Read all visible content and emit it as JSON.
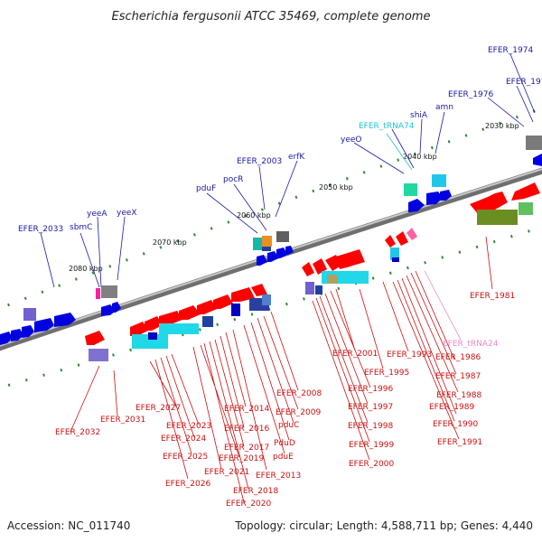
{
  "title": "Escherichia fergusonii ATCC 35469, complete genome",
  "footer": {
    "accession": "Accession: NC_011740",
    "summary": "Topology: circular; Length: 4,588,711 bp; Genes: 4,440"
  },
  "axis": {
    "ticks": [
      "2030 kbp",
      "2040 kbp",
      "2050 kbp",
      "2060 kbp",
      "2070 kbp",
      "2080 kbp"
    ]
  },
  "colors": {
    "plus_label": "#1a1aa6",
    "minus_label": "#cc1111",
    "trna_plus": "#22c4d6",
    "trna_minus": "#ee88c8",
    "backbone": "#8a8a8a",
    "tick": "#2f8a2f"
  },
  "labels_top": [
    "EFER_1974",
    "EFER_1975",
    "EFER_1976",
    "amn",
    "shiA",
    "EFER_tRNA74",
    "yeeO",
    "erfK",
    "EFER_2003",
    "pocR",
    "pduF",
    "yeeX",
    "yeeA",
    "sbmC",
    "EFER_2033"
  ],
  "labels_bottom": [
    "EFER_1981",
    "EFER_tRNA24",
    "EFER_1986",
    "EFER_1987",
    "EFER_1988",
    "EFER_1989",
    "EFER_1990",
    "EFER_1991",
    "EFER_1993",
    "EFER_1995",
    "EFER_2001",
    "EFER_1996",
    "EFER_1997",
    "EFER_1998",
    "EFER_1999",
    "EFER_2000",
    "EFER_2008",
    "EFER_2009",
    "pduC",
    "PduD",
    "pduE",
    "EFER_2013",
    "EFER_2014",
    "EFER_2016",
    "EFER_2017",
    "EFER_2018",
    "EFER_2020",
    "EFER_2019",
    "EFER_2021",
    "EFER_2023",
    "EFER_2024",
    "EFER_2025",
    "EFER_2026",
    "EFER_2027",
    "EFER_2031",
    "EFER_2032"
  ]
}
